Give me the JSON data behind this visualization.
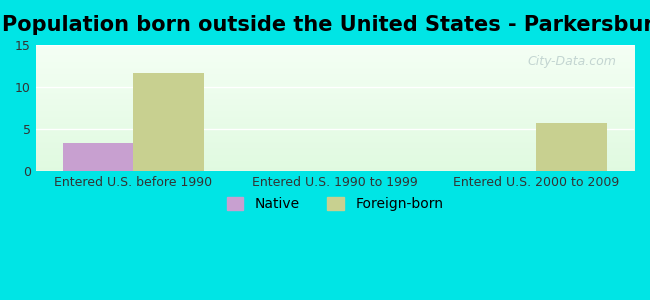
{
  "title": "Population born outside the United States - Parkersburg",
  "background_color": "#00e5e5",
  "categories": [
    "Entered U.S. before 1990",
    "Entered U.S. 1990 to 1999",
    "Entered U.S. 2000 to 2009"
  ],
  "native_values": [
    3.3,
    0,
    0
  ],
  "foreign_values": [
    11.7,
    0,
    5.7
  ],
  "native_color": "#c8a0d0",
  "foreign_color": "#c8d090",
  "ylim": [
    0,
    15
  ],
  "yticks": [
    0,
    5,
    10,
    15
  ],
  "bar_width": 0.35,
  "legend_native": "Native",
  "legend_foreign": "Foreign-born",
  "watermark": "City-Data.com",
  "title_fontsize": 15,
  "axis_label_fontsize": 9,
  "legend_fontsize": 10
}
